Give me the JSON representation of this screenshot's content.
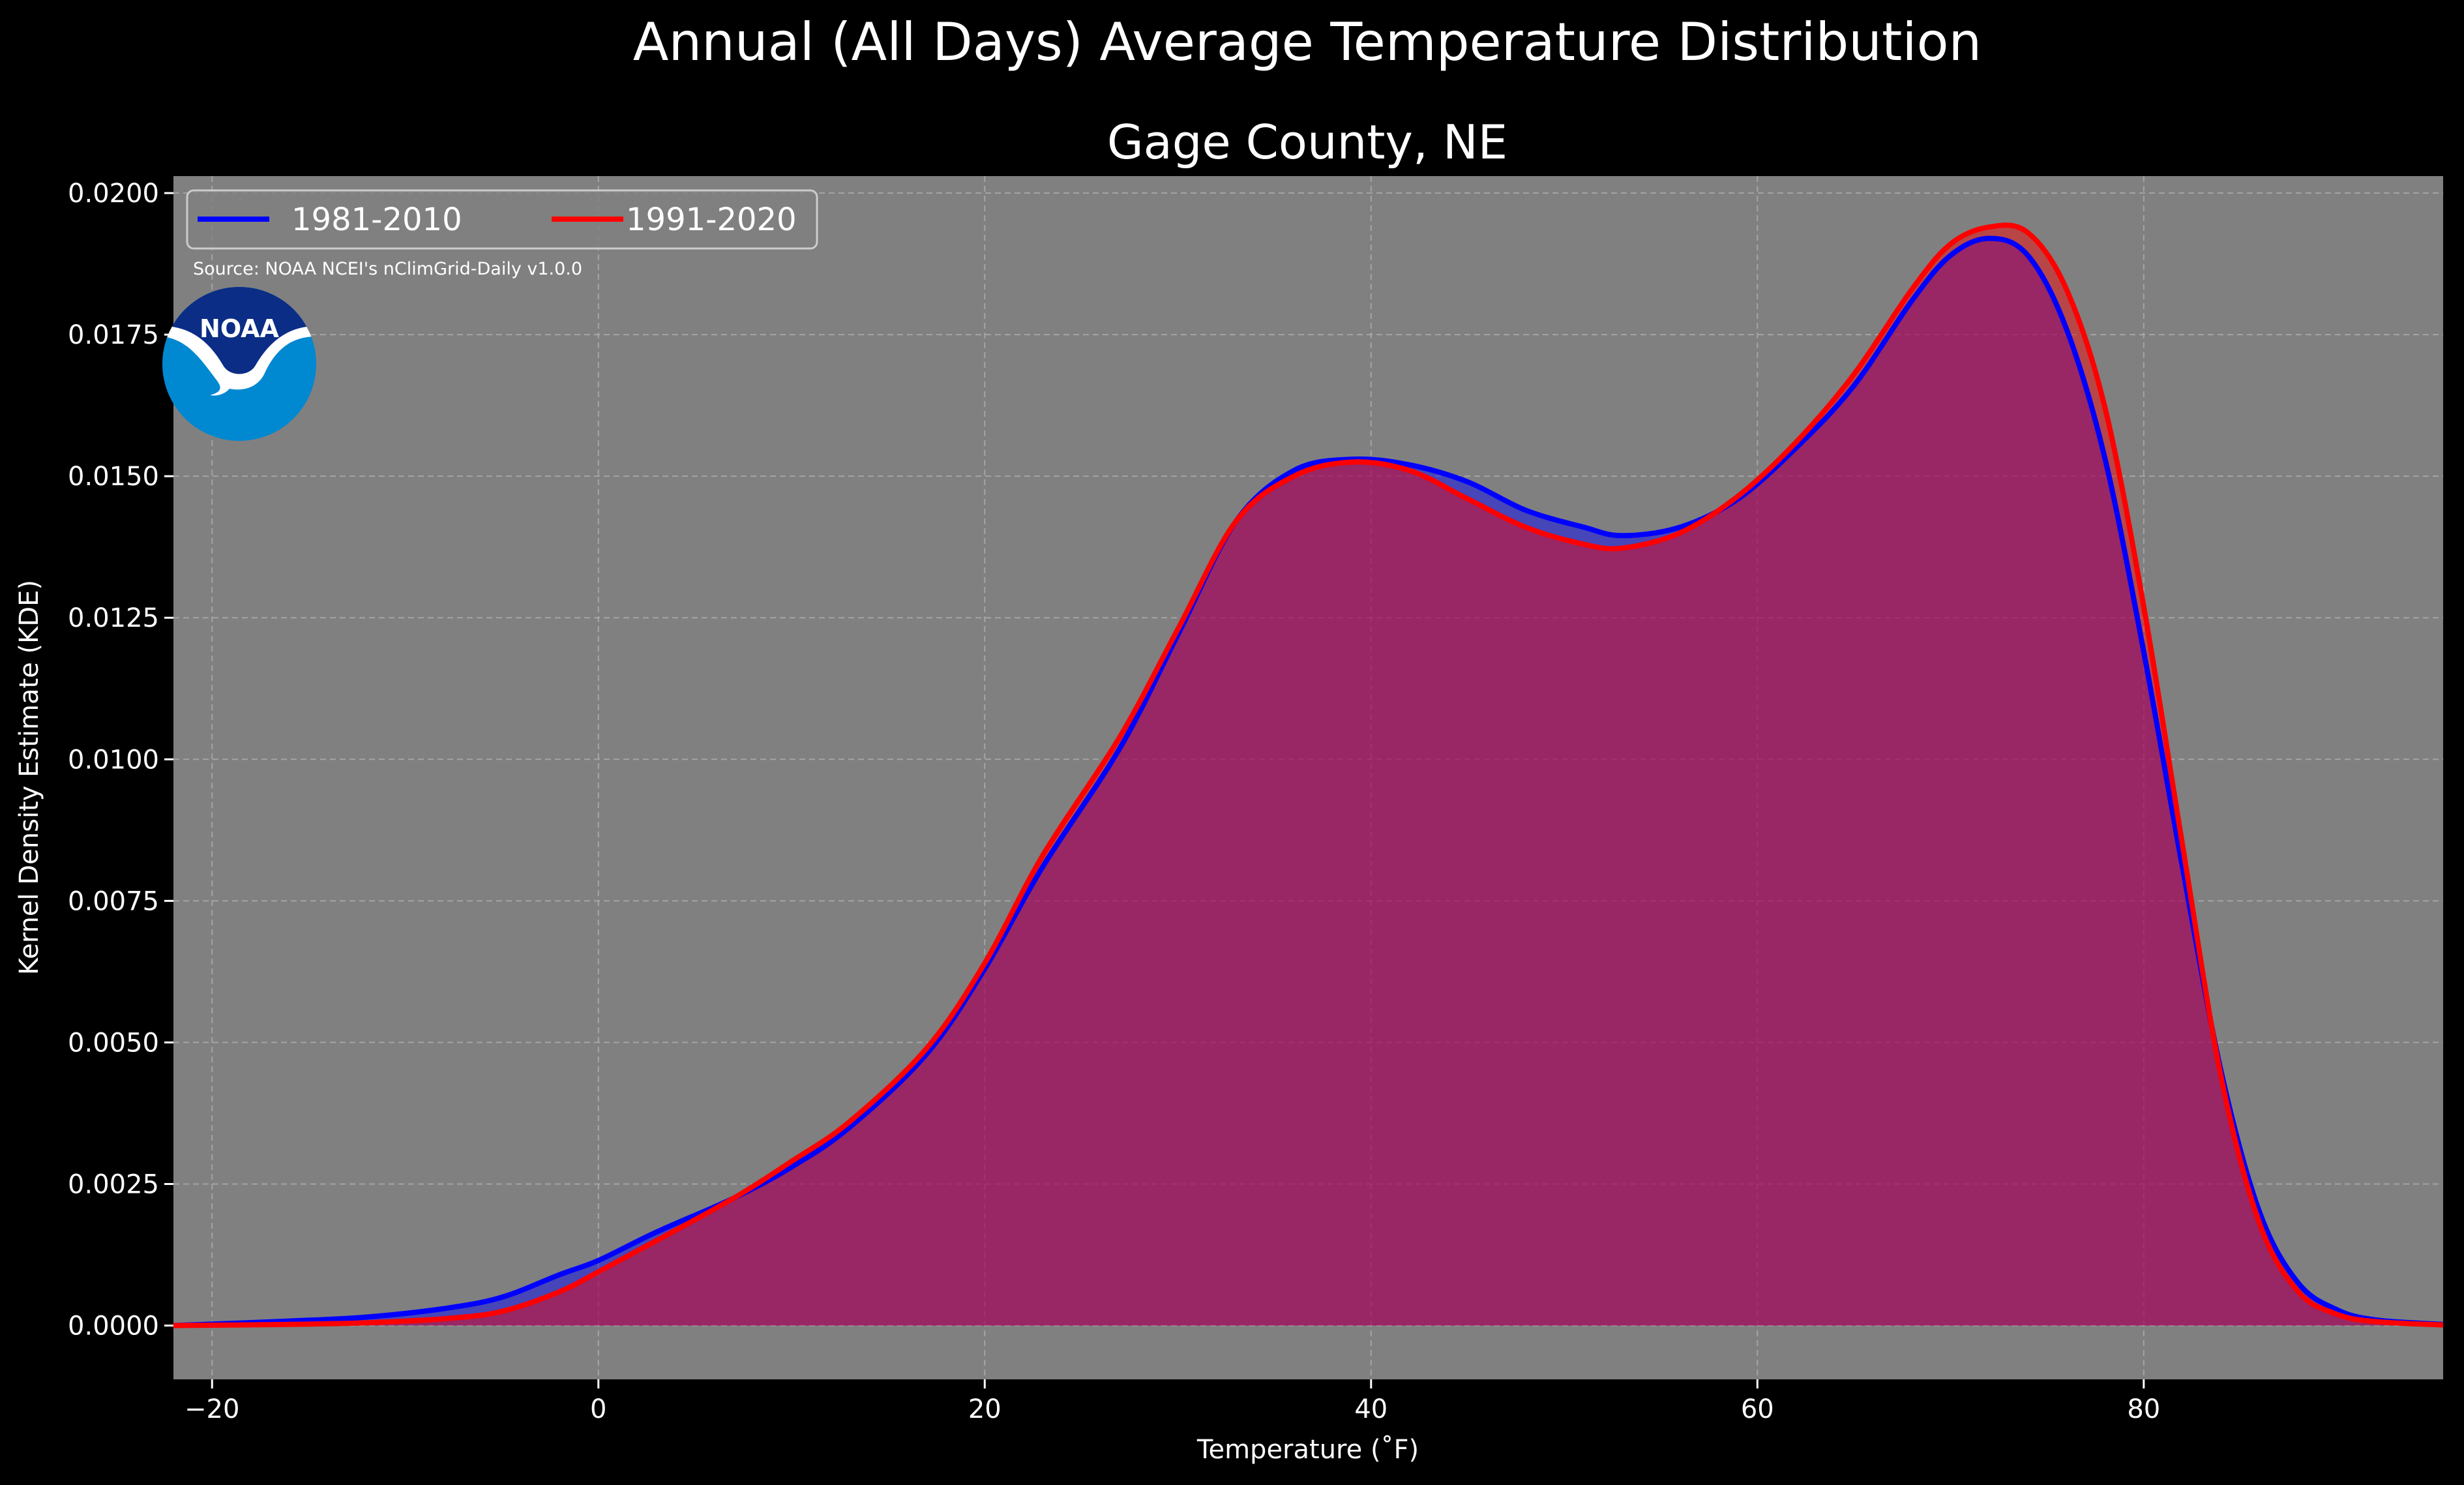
{
  "chart_data": {
    "type": "area",
    "suptitle": "Annual (All Days) Average Temperature Distribution",
    "title": "Gage County, NE",
    "xlabel": "Temperature ($^\\circ$F)",
    "xlabel_display": "Temperature (˚F)",
    "ylabel": "Kernel Density Estimate (KDE)",
    "xlim": [
      -22,
      95.5
    ],
    "ylim": [
      -0.00095,
      0.0203
    ],
    "xticks": [
      -20,
      0,
      20,
      40,
      60,
      80
    ],
    "xtick_labels": [
      "−20",
      "0",
      "20",
      "40",
      "60",
      "80"
    ],
    "yticks": [
      0,
      0.0025,
      0.005,
      0.0075,
      0.01,
      0.0125,
      0.015,
      0.0175,
      0.02
    ],
    "ytick_labels": [
      "0.0000",
      "0.0025",
      "0.0050",
      "0.0075",
      "0.0100",
      "0.0125",
      "0.0150",
      "0.0175",
      "0.0200"
    ],
    "grid": true,
    "legend_position": "top-left",
    "source": "Source: NOAA NCEI's nClimGrid-Daily v1.0.0",
    "logo_text": "NOAA",
    "series": [
      {
        "name": "1981-2010",
        "color": "#0000ff",
        "fill": "#0000ff",
        "x": [
          -22,
          -16,
          -12,
          -8,
          -5,
          -2,
          0,
          3,
          7,
          10,
          13,
          17,
          20,
          23,
          27,
          30,
          33,
          36,
          39,
          42,
          45,
          48,
          51,
          53,
          56,
          59,
          62,
          65,
          68,
          70,
          72,
          74,
          76,
          78,
          80,
          82,
          84,
          86,
          88,
          90,
          92,
          95.5
        ],
        "y": [
          0,
          8e-05,
          0.00015,
          0.0003,
          0.0005,
          0.0009,
          0.00115,
          0.00165,
          0.00225,
          0.0028,
          0.0035,
          0.0048,
          0.0063,
          0.0081,
          0.0102,
          0.0122,
          0.0142,
          0.0151,
          0.0153,
          0.0152,
          0.0149,
          0.0144,
          0.0141,
          0.01395,
          0.0141,
          0.0146,
          0.0155,
          0.0166,
          0.0181,
          0.0189,
          0.0192,
          0.0189,
          0.0176,
          0.0153,
          0.0119,
          0.0081,
          0.0045,
          0.002,
          0.00075,
          0.00028,
          0.0001,
          2e-05
        ]
      },
      {
        "name": "1991-2020",
        "color": "#ff0000",
        "fill": "#ff0000",
        "x": [
          -22,
          -16,
          -12,
          -8,
          -5,
          -2,
          0,
          3,
          7,
          10,
          13,
          17,
          20,
          23,
          27,
          30,
          33,
          36,
          39,
          42,
          45,
          48,
          51,
          53,
          56,
          59,
          62,
          65,
          68,
          70,
          72,
          74,
          76,
          78,
          80,
          82,
          84,
          86,
          88,
          90,
          92,
          95.5
        ],
        "y": [
          0,
          2e-05,
          5e-05,
          0.00012,
          0.00025,
          0.0006,
          0.00095,
          0.0015,
          0.00225,
          0.0029,
          0.0036,
          0.0049,
          0.0064,
          0.0083,
          0.0104,
          0.0123,
          0.0142,
          0.015,
          0.01525,
          0.0151,
          0.0146,
          0.0141,
          0.0138,
          0.01373,
          0.014,
          0.01465,
          0.0156,
          0.0168,
          0.0183,
          0.0191,
          0.0194,
          0.0193,
          0.0183,
          0.0162,
          0.0127,
          0.0085,
          0.0044,
          0.0018,
          0.0006,
          0.0002,
          7e-05,
          1e-05
        ]
      }
    ]
  },
  "colors": {
    "page_background": "#000000",
    "plot_background": "#808080",
    "overlap_fill": "#9e1f5d",
    "grid": "#b4b4b4",
    "logo_top": "#0b2d86",
    "logo_bottom": "#0088d1"
  }
}
